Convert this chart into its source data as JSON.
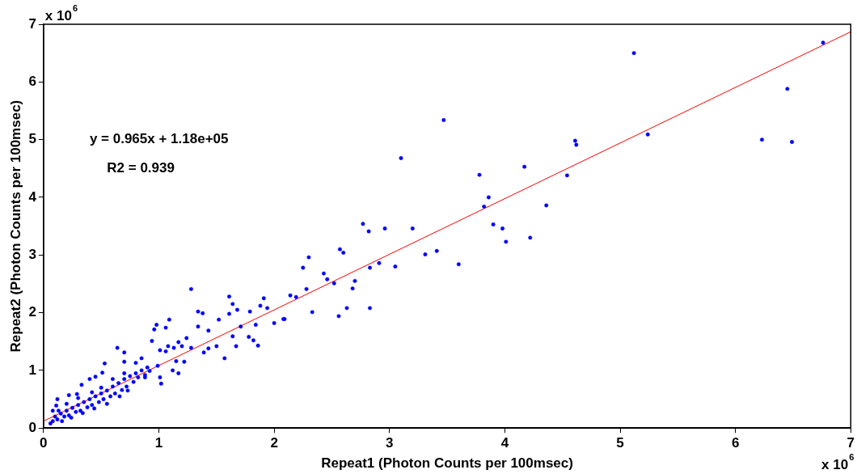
{
  "chart_data": {
    "type": "scatter",
    "xlabel": "Repeat1 (Photon Counts per 100msec)",
    "ylabel": "Repeat2 (Photon Counts per 100msec)",
    "annotations": [
      "y = 0.965x + 1.18e+05",
      "R2 = 0.939",
      "x 10$^{6}$",
      "x 10$^{6}$"
    ],
    "xlim": [
      0,
      7
    ],
    "ylim": [
      0,
      7
    ],
    "xticks": [
      0,
      1,
      2,
      3,
      4,
      5,
      6,
      7
    ],
    "yticks": [
      0,
      1,
      2,
      3,
      4,
      5,
      6,
      7
    ],
    "grid": false,
    "legend": false,
    "series": [
      {
        "type": "scatter",
        "color": "#0000ff",
        "marker": "circle",
        "x": [
          6.76,
          5.12,
          6.45,
          3.47,
          3.1,
          3.78,
          4.17,
          3.82,
          3.86,
          3.9,
          3.98,
          4.01,
          4.22,
          4.36,
          4.54,
          4.61,
          4.62,
          5.24,
          6.23,
          6.49,
          2.77,
          2.82,
          2.96,
          3.2,
          3.31,
          3.41,
          3.6,
          3.05,
          2.91,
          2.83,
          2.83,
          2.63,
          2.56,
          2.7,
          2.68,
          2.57,
          2.6,
          2.52,
          2.46,
          2.43,
          2.25,
          2.3,
          2.28,
          2.33,
          2.19,
          2.14,
          2.09,
          2.0,
          1.94,
          1.91,
          1.28,
          1.61,
          0.64,
          0.7,
          0.96,
          0.98,
          1.09,
          0.94,
          1.06,
          1.34,
          1.38,
          1.34,
          1.43,
          1.52,
          1.61,
          1.64,
          1.68,
          1.79,
          1.88,
          2.08,
          1.84,
          1.78,
          1.82,
          1.86,
          1.71,
          1.64,
          1.67,
          1.5,
          1.57,
          1.43,
          1.39,
          1.28,
          1.24,
          1.17,
          1.13,
          1.2,
          1.08,
          1.06,
          1.01,
          0.99,
          1.12,
          1.17,
          1.01,
          1.02,
          1.15,
          1.22,
          0.88,
          0.92,
          0.85,
          0.8,
          0.7,
          0.73,
          0.53,
          0.51,
          0.45,
          0.4,
          0.33,
          0.29,
          0.22,
          0.12,
          0.11,
          0.08,
          0.1,
          0.12,
          0.15,
          0.18,
          0.2,
          0.22,
          0.25,
          0.28,
          0.3,
          0.32,
          0.35,
          0.38,
          0.4,
          0.42,
          0.45,
          0.48,
          0.5,
          0.52,
          0.55,
          0.58,
          0.6,
          0.62,
          0.65,
          0.68,
          0.7,
          0.72,
          0.75,
          0.78,
          0.8,
          0.82,
          0.85,
          0.88,
          0.9,
          0.06,
          0.13,
          0.16,
          0.24,
          0.34,
          0.44,
          0.55,
          0.66,
          0.08,
          0.2,
          0.3,
          0.42,
          0.5,
          0.6,
          0.7
        ],
        "values": [
          6.68,
          6.5,
          5.88,
          5.34,
          4.68,
          4.39,
          4.53,
          3.84,
          4.0,
          3.53,
          3.46,
          3.23,
          3.3,
          3.86,
          4.38,
          4.98,
          4.91,
          5.09,
          5.0,
          4.96,
          3.54,
          3.41,
          3.46,
          3.46,
          3.01,
          3.07,
          2.84,
          2.8,
          2.86,
          2.78,
          2.08,
          2.08,
          1.94,
          2.55,
          2.42,
          3.1,
          3.04,
          2.51,
          2.58,
          2.68,
          2.78,
          2.96,
          2.41,
          2.01,
          2.27,
          2.3,
          1.89,
          1.82,
          2.08,
          2.25,
          2.41,
          2.28,
          1.39,
          1.31,
          1.71,
          1.79,
          1.88,
          1.51,
          1.74,
          2.02,
          1.99,
          1.76,
          1.69,
          1.88,
          1.98,
          2.15,
          2.05,
          2.02,
          2.12,
          1.89,
          1.79,
          1.58,
          1.52,
          1.43,
          1.76,
          1.59,
          1.42,
          1.42,
          1.21,
          1.38,
          1.31,
          1.39,
          1.56,
          1.49,
          1.39,
          1.42,
          1.42,
          1.33,
          1.35,
          1.08,
          1.0,
          0.95,
          0.88,
          0.77,
          1.16,
          1.15,
          0.88,
          0.99,
          1.21,
          1.13,
          1.15,
          0.65,
          1.12,
          0.96,
          0.89,
          0.85,
          0.75,
          0.59,
          0.57,
          0.5,
          0.39,
          0.12,
          0.2,
          0.15,
          0.25,
          0.2,
          0.3,
          0.22,
          0.35,
          0.28,
          0.4,
          0.3,
          0.45,
          0.36,
          0.5,
          0.4,
          0.55,
          0.45,
          0.6,
          0.5,
          0.65,
          0.55,
          0.72,
          0.6,
          0.78,
          0.66,
          0.85,
          0.72,
          0.9,
          0.8,
          0.95,
          0.88,
          1.0,
          0.92,
          1.05,
          0.08,
          0.3,
          0.12,
          0.18,
          0.26,
          0.34,
          0.42,
          0.55,
          0.3,
          0.42,
          0.52,
          0.62,
          0.7,
          0.85,
          0.95
        ]
      },
      {
        "type": "line",
        "color": "#ff0000",
        "line_style": "solid",
        "x": [
          0,
          7
        ],
        "values": [
          0.12,
          6.87
        ]
      }
    ]
  }
}
